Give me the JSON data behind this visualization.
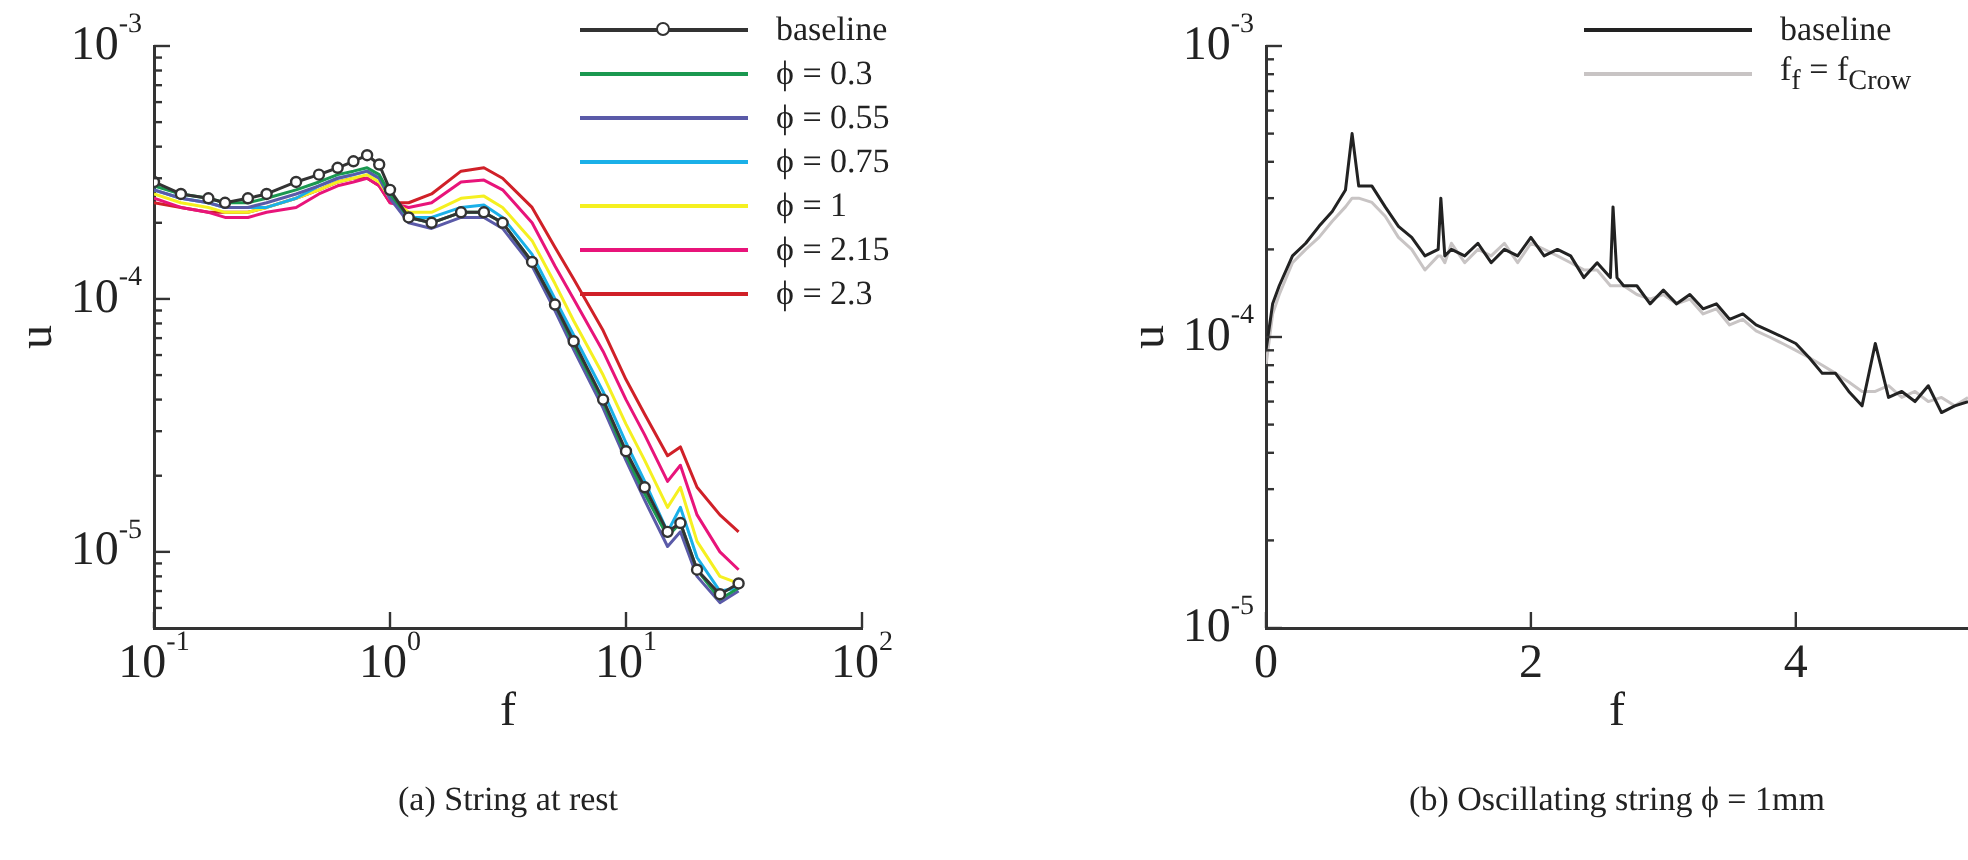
{
  "chart_data": [
    {
      "type": "line",
      "xlabel": "f",
      "ylabel": "u",
      "log": "xy",
      "xlim": [
        0.1,
        100
      ],
      "ylim": [
        5e-06,
        0.001
      ],
      "xticks": [
        {
          "value": 0.1,
          "label": "10$^{-1}$"
        },
        {
          "value": 1,
          "label": "10$^{0}$"
        },
        {
          "value": 10,
          "label": "10$^{1}$"
        },
        {
          "value": 100,
          "label": "10$^{2}$"
        }
      ],
      "yticks": [
        {
          "value": 6e-06,
          "label": null
        },
        {
          "value": 7e-06,
          "label": null
        },
        {
          "value": 8e-06,
          "label": null
        },
        {
          "value": 9e-06,
          "label": null
        },
        {
          "value": 1e-05,
          "label": "10$^{-5}$"
        },
        {
          "value": 2e-05,
          "label": null
        },
        {
          "value": 3e-05,
          "label": null
        },
        {
          "value": 4e-05,
          "label": null
        },
        {
          "value": 5e-05,
          "label": null
        },
        {
          "value": 6e-05,
          "label": null
        },
        {
          "value": 7e-05,
          "label": null
        },
        {
          "value": 8e-05,
          "label": null
        },
        {
          "value": 9e-05,
          "label": null
        },
        {
          "value": 0.0001,
          "label": "10$^{-4}$"
        },
        {
          "value": 0.0002,
          "label": null
        },
        {
          "value": 0.0003,
          "label": null
        },
        {
          "value": 0.0004,
          "label": null
        },
        {
          "value": 0.0005,
          "label": null
        },
        {
          "value": 0.0006,
          "label": null
        },
        {
          "value": 0.0007,
          "label": null
        },
        {
          "value": 0.0008,
          "label": null
        },
        {
          "value": 0.0009,
          "label": null
        },
        {
          "value": 0.001,
          "label": "10$^{-3}$"
        }
      ],
      "legend": "top right",
      "marker": "none",
      "annotations": [
        "(a) String at rest"
      ],
      "x": [
        0.1,
        0.13,
        0.17,
        0.2,
        0.25,
        0.3,
        0.4,
        0.5,
        0.6,
        0.7,
        0.8,
        0.9,
        1.0,
        1.2,
        1.5,
        2,
        2.5,
        3,
        4,
        5,
        6,
        8,
        10,
        12,
        15,
        17,
        20,
        25,
        30
      ],
      "series": [
        {
          "name": "baseline",
          "color": "#333333",
          "marker": "circle",
          "values": [
            0.00029,
            0.00026,
            0.00025,
            0.00024,
            0.00025,
            0.00026,
            0.00029,
            0.00031,
            0.00033,
            0.00035,
            0.00037,
            0.00034,
            0.00027,
            0.00021,
            0.0002,
            0.00022,
            0.00022,
            0.0002,
            0.00014,
            9.5e-05,
            6.8e-05,
            4e-05,
            2.5e-05,
            1.8e-05,
            1.2e-05,
            1.3e-05,
            8.5e-06,
            6.8e-06,
            7.5e-06
          ]
        },
        {
          "name": "ϕ = 0.3",
          "color": "#1a9850",
          "values": [
            0.00028,
            0.00026,
            0.00025,
            0.00024,
            0.00024,
            0.00025,
            0.00027,
            0.00029,
            0.00031,
            0.00032,
            0.00033,
            0.00031,
            0.00026,
            0.00021,
            0.0002,
            0.00022,
            0.00022,
            0.0002,
            0.00014,
            9.5e-05,
            6.6e-05,
            3.9e-05,
            2.4e-05,
            1.7e-05,
            1.15e-05,
            1.3e-05,
            8.5e-06,
            6.5e-06,
            7.2e-06
          ]
        },
        {
          "name": "ϕ = 0.55",
          "color": "#5a5aa8",
          "values": [
            0.00027,
            0.00025,
            0.00024,
            0.00023,
            0.00023,
            0.00024,
            0.00026,
            0.00028,
            0.0003,
            0.00031,
            0.00032,
            0.0003,
            0.00025,
            0.0002,
            0.00019,
            0.00021,
            0.00021,
            0.00019,
            0.000135,
            9e-05,
            6.3e-05,
            3.7e-05,
            2.3e-05,
            1.6e-05,
            1.05e-05,
            1.2e-05,
            8e-06,
            6.3e-06,
            7e-06
          ]
        },
        {
          "name": "ϕ = 0.75",
          "color": "#1ab0e8",
          "values": [
            0.00027,
            0.00025,
            0.00024,
            0.00023,
            0.00023,
            0.00023,
            0.00025,
            0.00028,
            0.0003,
            0.00031,
            0.00032,
            0.0003,
            0.00025,
            0.00021,
            0.00021,
            0.00023,
            0.000235,
            0.00021,
            0.00015,
            0.0001,
            7.2e-05,
            4.3e-05,
            2.7e-05,
            1.9e-05,
            1.2e-05,
            1.5e-05,
            9.5e-06,
            7e-06,
            7.2e-06
          ]
        },
        {
          "name": "ϕ = 1",
          "color": "#f5f020",
          "values": [
            0.00026,
            0.00024,
            0.00023,
            0.00022,
            0.00022,
            0.00023,
            0.00025,
            0.00027,
            0.00029,
            0.0003,
            0.00031,
            0.00029,
            0.00025,
            0.00022,
            0.00022,
            0.00025,
            0.000255,
            0.00023,
            0.00017,
            0.000115,
            8.2e-05,
            5e-05,
            3.2e-05,
            2.3e-05,
            1.5e-05,
            1.8e-05,
            1.1e-05,
            8e-06,
            7.5e-06
          ]
        },
        {
          "name": "ϕ = 2.15",
          "color": "#e8147a",
          "values": [
            0.00025,
            0.00023,
            0.00022,
            0.00021,
            0.00021,
            0.00022,
            0.00023,
            0.00026,
            0.00028,
            0.00029,
            0.0003,
            0.00028,
            0.00024,
            0.00023,
            0.00024,
            0.00029,
            0.000295,
            0.00027,
            0.0002,
            0.000135,
            0.0001,
            6.2e-05,
            4e-05,
            2.9e-05,
            1.9e-05,
            2.2e-05,
            1.4e-05,
            1e-05,
            8.5e-06
          ]
        },
        {
          "name": "ϕ = 2.3",
          "color": "#d02028",
          "values": [
            0.00024,
            0.00023,
            0.00022,
            0.00022,
            0.00022,
            0.00023,
            0.00025,
            0.00027,
            0.00029,
            0.0003,
            0.0003,
            0.00028,
            0.00024,
            0.00024,
            0.00026,
            0.00032,
            0.00033,
            0.0003,
            0.00023,
            0.00016,
            0.00012,
            7.5e-05,
            4.8e-05,
            3.5e-05,
            2.4e-05,
            2.6e-05,
            1.8e-05,
            1.4e-05,
            1.2e-05
          ]
        }
      ]
    },
    {
      "type": "line",
      "xlabel": "f",
      "ylabel": "u",
      "log": "y",
      "xlim": [
        0,
        5.3
      ],
      "ylim": [
        1e-05,
        0.001
      ],
      "xticks": [
        0,
        2,
        4
      ],
      "yticks": [
        {
          "value": 1e-05,
          "label": "10$^{-5}$"
        },
        {
          "value": 2e-05,
          "label": null
        },
        {
          "value": 3e-05,
          "label": null
        },
        {
          "value": 4e-05,
          "label": null
        },
        {
          "value": 5e-05,
          "label": null
        },
        {
          "value": 6e-05,
          "label": null
        },
        {
          "value": 7e-05,
          "label": null
        },
        {
          "value": 8e-05,
          "label": null
        },
        {
          "value": 9e-05,
          "label": null
        },
        {
          "value": 0.0001,
          "label": "10$^{-4}$"
        },
        {
          "value": 0.0002,
          "label": null
        },
        {
          "value": 0.0003,
          "label": null
        },
        {
          "value": 0.0004,
          "label": null
        },
        {
          "value": 0.0005,
          "label": null
        },
        {
          "value": 0.0006,
          "label": null
        },
        {
          "value": 0.0007,
          "label": null
        },
        {
          "value": 0.0008,
          "label": null
        },
        {
          "value": 0.0009,
          "label": null
        },
        {
          "value": 0.001,
          "label": "10$^{-3}$"
        }
      ],
      "legend": "top right",
      "marker": "none",
      "annotations": [
        "(b) Oscillating string ϕ = 1mm"
      ],
      "x": [
        0,
        0.05,
        0.1,
        0.2,
        0.3,
        0.4,
        0.5,
        0.6,
        0.65,
        0.7,
        0.8,
        0.9,
        1.0,
        1.1,
        1.2,
        1.3,
        1.32,
        1.35,
        1.4,
        1.5,
        1.6,
        1.7,
        1.8,
        1.9,
        2.0,
        2.1,
        2.2,
        2.3,
        2.4,
        2.5,
        2.6,
        2.62,
        2.65,
        2.7,
        2.8,
        2.9,
        3.0,
        3.1,
        3.2,
        3.3,
        3.4,
        3.5,
        3.6,
        3.7,
        3.8,
        3.9,
        4.0,
        4.1,
        4.2,
        4.3,
        4.4,
        4.5,
        4.6,
        4.7,
        4.8,
        4.9,
        5.0,
        5.1,
        5.2,
        5.3
      ],
      "series": [
        {
          "name": "baseline",
          "color": "#222222",
          "values": [
            9e-05,
            0.00013,
            0.00015,
            0.00019,
            0.00021,
            0.00024,
            0.00027,
            0.00032,
            0.0005,
            0.00033,
            0.00033,
            0.00028,
            0.00024,
            0.00022,
            0.00019,
            0.0002,
            0.0003,
            0.00019,
            0.0002,
            0.00019,
            0.00021,
            0.00018,
            0.0002,
            0.00019,
            0.00022,
            0.00019,
            0.0002,
            0.00019,
            0.00016,
            0.00018,
            0.00016,
            0.00028,
            0.00016,
            0.00015,
            0.00015,
            0.00013,
            0.000145,
            0.00013,
            0.00014,
            0.000125,
            0.00013,
            0.000115,
            0.00012,
            0.00011,
            0.000105,
            0.0001,
            9.5e-05,
            8.5e-05,
            7.5e-05,
            7.5e-05,
            6.5e-05,
            5.8e-05,
            9.5e-05,
            6.2e-05,
            6.5e-05,
            6e-05,
            6.8e-05,
            5.5e-05,
            5.8e-05,
            6e-05
          ]
        },
        {
          "name": "f$_{f}$ = f$_{Crow}$",
          "color": "#c8c4c4",
          "values": [
            8e-05,
            0.00012,
            0.00014,
            0.00018,
            0.0002,
            0.00022,
            0.00025,
            0.00028,
            0.0003,
            0.0003,
            0.00029,
            0.00026,
            0.00022,
            0.0002,
            0.00017,
            0.00019,
            0.00019,
            0.00018,
            0.00021,
            0.00018,
            0.0002,
            0.00019,
            0.00021,
            0.00018,
            0.00021,
            0.0002,
            0.00019,
            0.00018,
            0.00017,
            0.00017,
            0.00015,
            0.00015,
            0.00015,
            0.00015,
            0.00014,
            0.000135,
            0.00014,
            0.00013,
            0.000135,
            0.00012,
            0.000125,
            0.00011,
            0.000115,
            0.000105,
            0.0001,
            9.5e-05,
            9e-05,
            8.5e-05,
            8e-05,
            7.5e-05,
            7e-05,
            6.5e-05,
            6.5e-05,
            6.8e-05,
            6.2e-05,
            6.5e-05,
            6e-05,
            6.2e-05,
            5.8e-05,
            6.2e-05
          ]
        }
      ]
    }
  ]
}
